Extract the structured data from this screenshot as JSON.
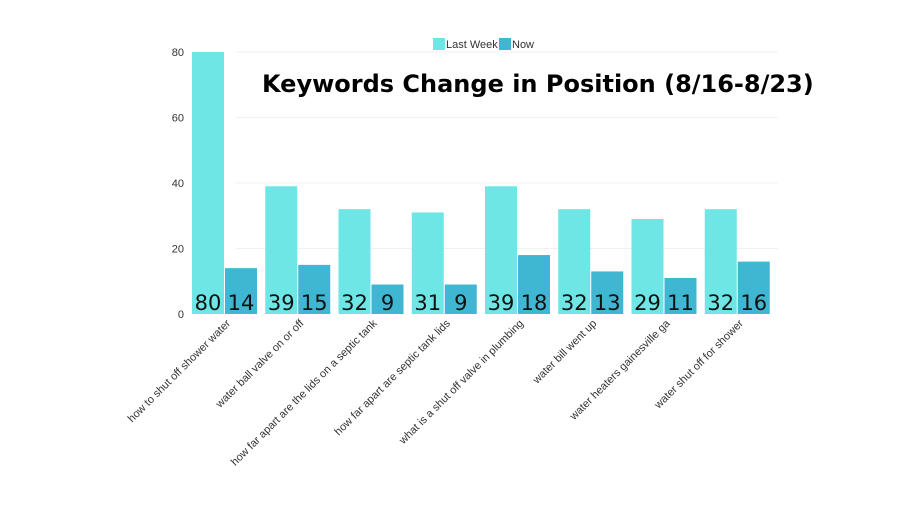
{
  "chart_data": {
    "type": "bar",
    "title": "Keywords Change in Position (8/16-8/23)",
    "xlabel": "",
    "ylabel": "",
    "ylim": [
      0,
      80
    ],
    "yticks": [
      0,
      20,
      40,
      60,
      80
    ],
    "grid": true,
    "legend_position": "top-center",
    "categories": [
      "how to shut off shower water",
      "water ball valve on or off",
      "how far apart are the lids on a septic tank",
      "how far apart are septic tank lids",
      "what is a shut off valve in plumbing",
      "water bill went up",
      "water heaters gainesville ga",
      "water shut off for shower"
    ],
    "series": [
      {
        "name": "Last Week",
        "color": "#6ee6e6",
        "values": [
          80,
          39,
          32,
          31,
          39,
          32,
          29,
          32
        ]
      },
      {
        "name": "Now",
        "color": "#3fb6d2",
        "values": [
          14,
          15,
          9,
          9,
          18,
          13,
          11,
          16
        ]
      }
    ]
  }
}
